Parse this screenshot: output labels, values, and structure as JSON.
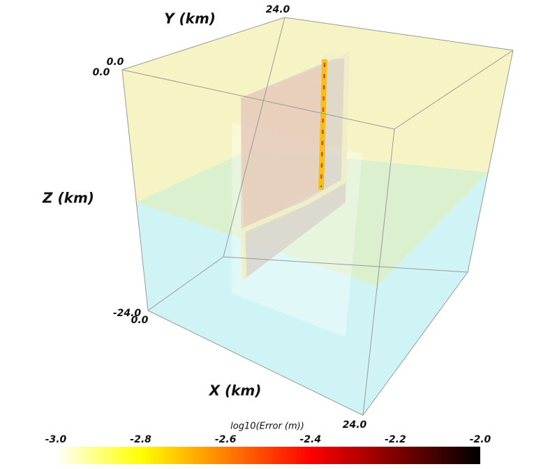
{
  "chart_data": {
    "type": "volume3d",
    "xlabel": "X (km)",
    "ylabel": "Y (km)",
    "zlabel": "Z (km)",
    "xlim": [
      0,
      24
    ],
    "ylim": [
      0,
      24
    ],
    "zlim": [
      -24,
      0
    ],
    "xticks": [
      {
        "value": 0,
        "label": "0.0"
      },
      {
        "value": 24,
        "label": "24.0"
      }
    ],
    "yticks": [
      {
        "value": 0,
        "label": "0.0"
      },
      {
        "value": 24,
        "label": "24.0"
      }
    ],
    "zticks": [
      {
        "value": -24,
        "label": "-24.0"
      },
      {
        "value": 0,
        "label": "0.0"
      }
    ],
    "colorbar": {
      "label": "log10(Error (m))",
      "lim": [
        -3,
        -2
      ],
      "ticks": [
        {
          "value": -3,
          "label": "-3.0"
        },
        -2.8,
        -2.6,
        -2.4,
        -2.2,
        {
          "value": -2,
          "label": "-2.0"
        }
      ],
      "colors": [
        "#ffffff",
        "#ffff00",
        "#ff8000",
        "#ff0000",
        "#800000",
        "#000000"
      ]
    }
  }
}
